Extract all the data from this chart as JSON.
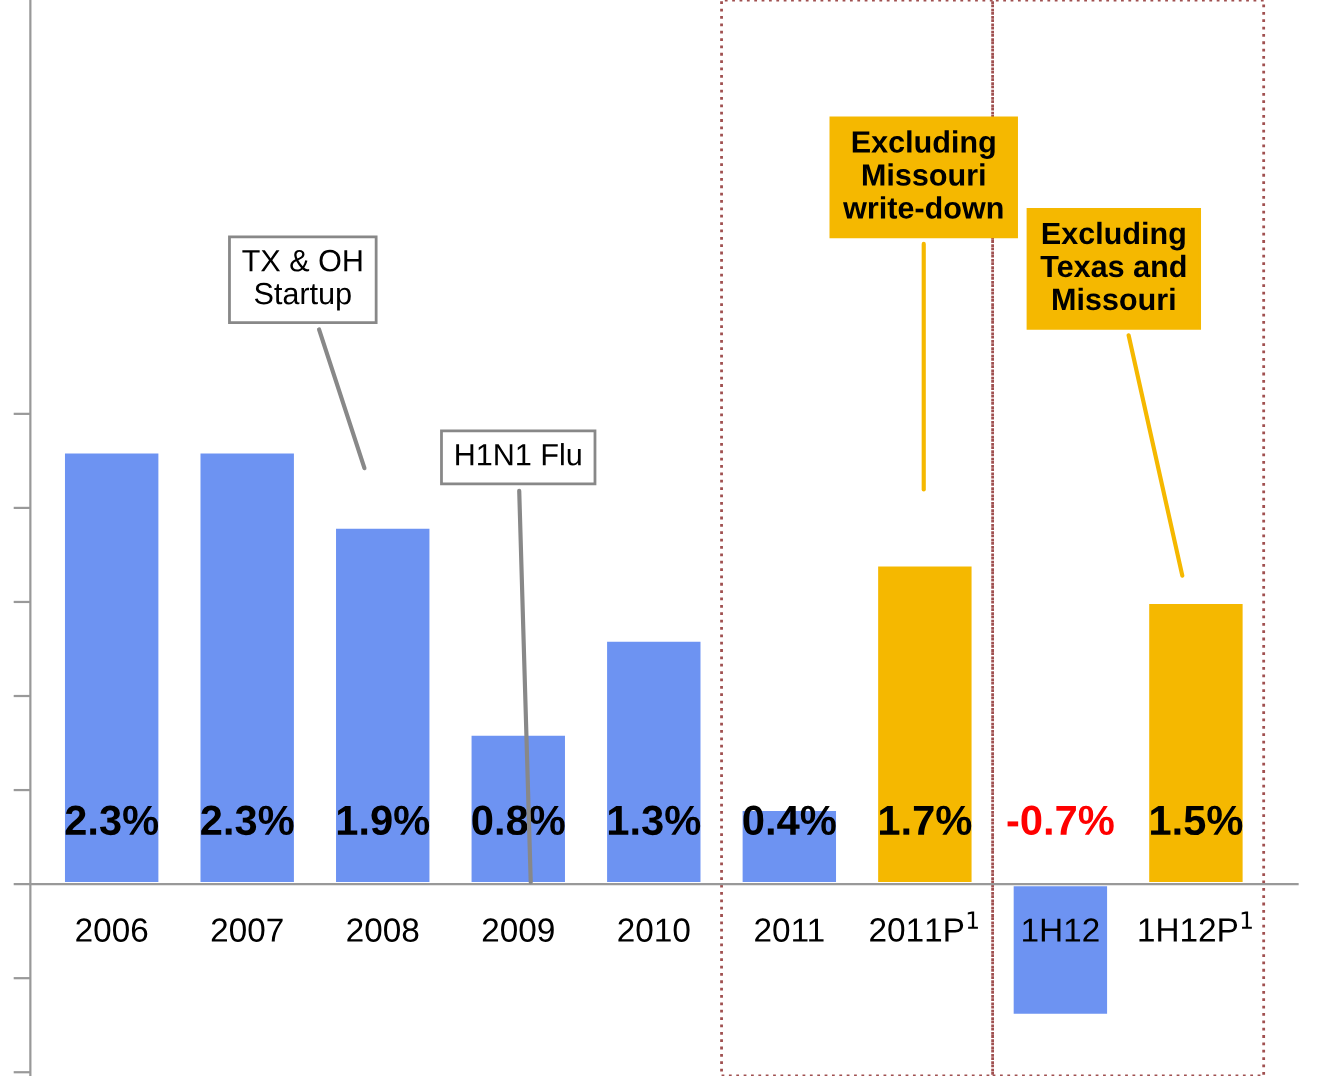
{
  "chart_data": {
    "type": "bar",
    "categories": [
      "2006",
      "2007",
      "2008",
      "2009",
      "2010",
      "2011",
      "2011P$^{1}$",
      "1H12",
      "1H12P$^{1}$"
    ],
    "values": [
      2.3,
      2.3,
      1.9,
      0.8,
      1.3,
      0.4,
      1.7,
      -0.7,
      1.5
    ],
    "value_labels": [
      "2.3%",
      "2.3%",
      "1.9%",
      "0.8%",
      "1.3%",
      "0.4%",
      "1.7%",
      "-0.7%",
      "1.5%"
    ],
    "colors": [
      "#6d93f2",
      "#6d93f2",
      "#6d93f2",
      "#6d93f2",
      "#6d93f2",
      "#6d93f2",
      "#f5b800",
      "#6d93f2",
      "#f5b800"
    ],
    "ylim": [
      -1.02,
      4.7
    ],
    "yticks": [
      {
        "value": -1.0,
        "label": null
      },
      {
        "value": -0.5,
        "label": null
      },
      {
        "value": 0,
        "label": null
      },
      {
        "value": 0.5,
        "label": null
      },
      {
        "value": 1.0,
        "label": null
      },
      {
        "value": 1.5,
        "label": null
      },
      {
        "value": 2.0,
        "label": null
      },
      {
        "value": 2.5,
        "label": null
      }
    ],
    "annotations": [
      "TX & OH\nStartup",
      "H1N1 Flu",
      "Excluding\nMissouri\nwrite-down",
      "Excluding\nTexas and\nMissouri"
    ],
    "grid": false
  }
}
